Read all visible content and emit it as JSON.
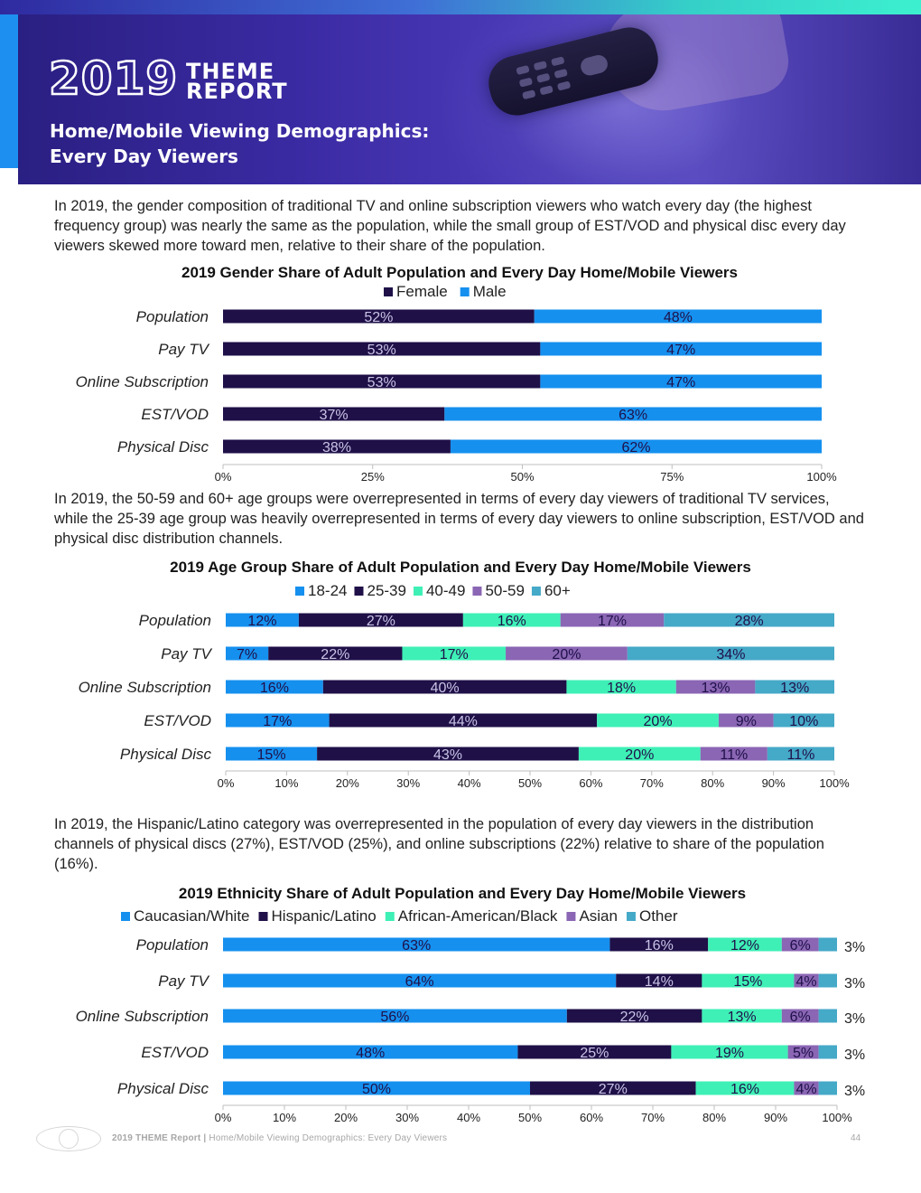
{
  "header": {
    "logo_year": "2019",
    "logo_line1": "THEME",
    "logo_line2": "REPORT",
    "title_line1": "Home/Mobile Viewing Demographics:",
    "title_line2": "Every Day Viewers"
  },
  "colors": {
    "dark_purple": "#1f1048",
    "bright_blue": "#1590ef",
    "mint": "#3ef0b6",
    "lavender": "#8a66b4",
    "teal": "#45a9c8"
  },
  "paragraphs": {
    "gender": "In 2019, the gender composition of traditional TV and online subscription viewers who watch every day (the highest frequency group) was nearly the same as the population, while the small group of EST/VOD and physical disc every day viewers skewed more toward men, relative to their share of the population.",
    "age": "In 2019, the 50-59 and 60+ age groups were overrepresented in terms of every day viewers of traditional TV services, while the 25-39 age group was heavily overrepresented in terms of every day viewers to online subscription, EST/VOD and physical disc distribution channels.",
    "ethnicity": "In 2019, the Hispanic/Latino category was overrepresented in the population of every day viewers in the distribution channels of physical discs (27%), EST/VOD (25%), and online subscriptions (22%) relative to share of the population (16%)."
  },
  "chart_data": [
    {
      "type": "bar",
      "orientation": "horizontal",
      "stacked": true,
      "title": "2019 Gender Share of Adult Population and Every Day Home/Mobile Viewers",
      "categories": [
        "Population",
        "Pay TV",
        "Online Subscription",
        "EST/VOD",
        "Physical Disc"
      ],
      "series": [
        {
          "name": "Female",
          "color": "#1f1048",
          "values": [
            52,
            53,
            53,
            37,
            38
          ]
        },
        {
          "name": "Male",
          "color": "#1590ef",
          "values": [
            48,
            47,
            47,
            63,
            62
          ]
        }
      ],
      "data_labels": [
        [
          "52%",
          "53%",
          "53%",
          "37%",
          "38%"
        ],
        [
          "48%",
          "47%",
          "47%",
          "63%",
          "62%"
        ]
      ],
      "xlim": [
        0,
        100
      ],
      "xticks": [
        "0%",
        "25%",
        "50%",
        "75%",
        "100%"
      ],
      "legend_position": "top"
    },
    {
      "type": "bar",
      "orientation": "horizontal",
      "stacked": true,
      "title": "2019 Age Group Share of Adult Population and Every Day Home/Mobile Viewers",
      "categories": [
        "Population",
        "Pay TV",
        "Online Subscription",
        "EST/VOD",
        "Physical Disc"
      ],
      "series": [
        {
          "name": "18-24",
          "color": "#1590ef",
          "values": [
            12,
            7,
            16,
            17,
            15
          ]
        },
        {
          "name": "25-39",
          "color": "#1f1048",
          "values": [
            27,
            22,
            40,
            44,
            43
          ]
        },
        {
          "name": "40-49",
          "color": "#3ef0b6",
          "values": [
            16,
            17,
            18,
            20,
            20
          ]
        },
        {
          "name": "50-59",
          "color": "#8a66b4",
          "values": [
            17,
            20,
            13,
            9,
            11
          ]
        },
        {
          "name": "60+",
          "color": "#45a9c8",
          "values": [
            28,
            34,
            13,
            10,
            11
          ]
        }
      ],
      "data_labels": [
        [
          "12%",
          "7%",
          "16%",
          "17%",
          "15%"
        ],
        [
          "27%",
          "22%",
          "40%",
          "44%",
          "43%"
        ],
        [
          "16%",
          "17%",
          "18%",
          "20%",
          "20%"
        ],
        [
          "17%",
          "20%",
          "13%",
          "9%",
          "11%"
        ],
        [
          "28%",
          "34%",
          "13%",
          "10%",
          "11%"
        ]
      ],
      "xlim": [
        0,
        100
      ],
      "xticks": [
        "0%",
        "10%",
        "20%",
        "30%",
        "40%",
        "50%",
        "60%",
        "70%",
        "80%",
        "90%",
        "100%"
      ],
      "legend_position": "top"
    },
    {
      "type": "bar",
      "orientation": "horizontal",
      "stacked": true,
      "title": "2019 Ethnicity Share of Adult Population and Every Day Home/Mobile Viewers",
      "categories": [
        "Population",
        "Pay TV",
        "Online Subscription",
        "EST/VOD",
        "Physical Disc"
      ],
      "series": [
        {
          "name": "Caucasian/White",
          "color": "#1590ef",
          "values": [
            63,
            64,
            56,
            48,
            50
          ]
        },
        {
          "name": "Hispanic/Latino",
          "color": "#1f1048",
          "values": [
            16,
            14,
            22,
            25,
            27
          ]
        },
        {
          "name": "African-American/Black",
          "color": "#3ef0b6",
          "values": [
            12,
            15,
            13,
            19,
            16
          ]
        },
        {
          "name": "Asian",
          "color": "#8a66b4",
          "values": [
            6,
            4,
            6,
            5,
            4
          ]
        },
        {
          "name": "Other",
          "color": "#45a9c8",
          "values": [
            3,
            3,
            3,
            3,
            3
          ]
        }
      ],
      "data_labels": [
        [
          "63%",
          "64%",
          "56%",
          "48%",
          "50%"
        ],
        [
          "16%",
          "14%",
          "22%",
          "25%",
          "27%"
        ],
        [
          "12%",
          "15%",
          "13%",
          "19%",
          "16%"
        ],
        [
          "6%",
          "4%",
          "6%",
          "5%",
          "4%"
        ],
        [
          "3%",
          "3%",
          "3%",
          "3%",
          "3%"
        ]
      ],
      "xlim": [
        0,
        100
      ],
      "xticks": [
        "0%",
        "10%",
        "20%",
        "30%",
        "40%",
        "50%",
        "60%",
        "70%",
        "80%",
        "90%",
        "100%"
      ],
      "legend_position": "top"
    }
  ],
  "footer": {
    "brand": "2019 THEME Report",
    "separator": "|",
    "section": "Home/Mobile Viewing Demographics: Every Day Viewers",
    "page_number": "44"
  }
}
